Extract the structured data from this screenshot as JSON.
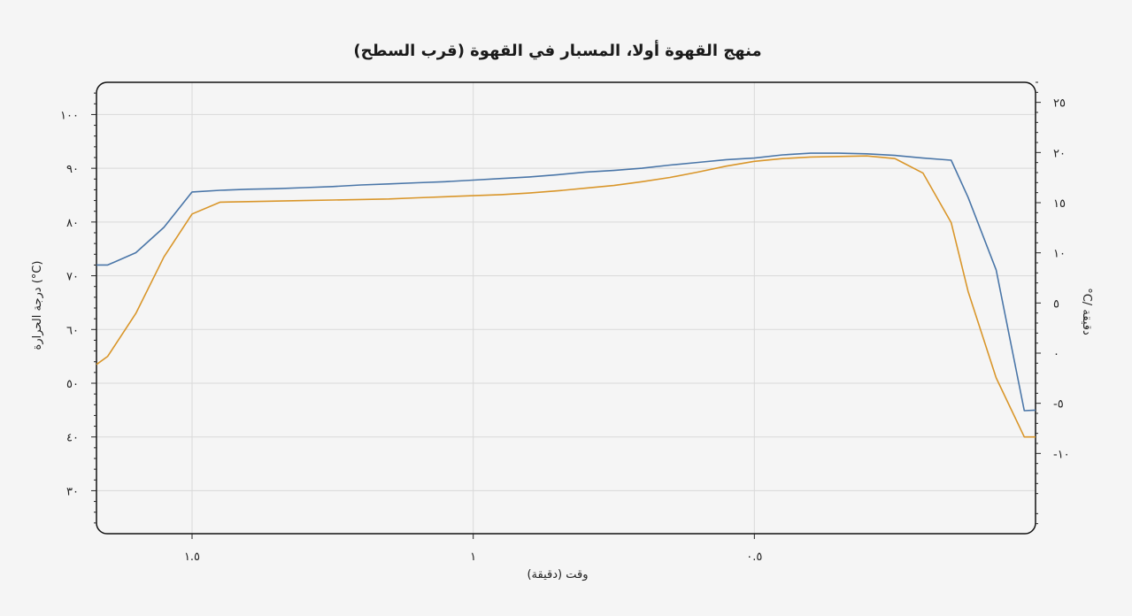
{
  "chart_data": {
    "type": "line",
    "title": "منهج القهوة أولا، المسبار في القهوة (قرب السطح)",
    "xlabel": "وقت (دقيقة)",
    "ylabel": "درجة الحرارة (°C)",
    "y2label": "°C/ دقيقة",
    "x_reversed": true,
    "xlim": [
      1.67,
      0
    ],
    "ylim": [
      22,
      106
    ],
    "y2lim": [
      -18,
      27
    ],
    "x_ticks": [
      1.5,
      1,
      0.5
    ],
    "x_tick_labels": [
      "١.٥",
      "١",
      "٠.٥"
    ],
    "y_ticks": [
      30,
      40,
      50,
      60,
      70,
      80,
      90,
      100
    ],
    "y_tick_labels": [
      "٣٠",
      "٤٠",
      "٥٠",
      "٦٠",
      "٧٠",
      "٨٠",
      "٩٠",
      "١٠٠"
    ],
    "y2_ticks": [
      -10,
      -5,
      0,
      5,
      10,
      15,
      20,
      25
    ],
    "y2_tick_labels": [
      "-١٠",
      "-٥",
      "٠",
      "٥",
      "١٠",
      "١٥",
      "٢٠",
      "٢٥"
    ],
    "grid": true,
    "series": [
      {
        "color": "#4a76a8",
        "x": [
          1.67,
          1.65,
          1.6,
          1.55,
          1.5,
          1.45,
          1.4,
          1.35,
          1.3,
          1.25,
          1.2,
          1.15,
          1.1,
          1.05,
          1.0,
          0.95,
          0.9,
          0.85,
          0.8,
          0.75,
          0.7,
          0.65,
          0.6,
          0.55,
          0.5,
          0.45,
          0.4,
          0.35,
          0.3,
          0.25,
          0.2,
          0.15,
          0.12,
          0.07,
          0.02,
          0.0
        ],
        "y": [
          72,
          72,
          74.3,
          79,
          85.6,
          85.9,
          86.1,
          86.2,
          86.4,
          86.6,
          86.9,
          87.1,
          87.3,
          87.5,
          87.8,
          88.1,
          88.4,
          88.8,
          89.3,
          89.6,
          90.0,
          90.6,
          91.1,
          91.6,
          91.9,
          92.5,
          92.8,
          92.8,
          92.7,
          92.4,
          91.9,
          91.5,
          84.6,
          71.1,
          44.9,
          45
        ]
      },
      {
        "color": "#d9962a",
        "x": [
          1.67,
          1.65,
          1.6,
          1.55,
          1.5,
          1.45,
          1.4,
          1.35,
          1.3,
          1.25,
          1.2,
          1.15,
          1.1,
          1.05,
          1.0,
          0.95,
          0.9,
          0.85,
          0.8,
          0.75,
          0.7,
          0.65,
          0.6,
          0.55,
          0.5,
          0.45,
          0.4,
          0.35,
          0.3,
          0.25,
          0.2,
          0.15,
          0.12,
          0.07,
          0.02,
          0.0
        ],
        "y": [
          53.5,
          55,
          63,
          73.5,
          81.5,
          83.7,
          83.8,
          83.9,
          84.0,
          84.1,
          84.2,
          84.3,
          84.5,
          84.7,
          84.9,
          85.1,
          85.4,
          85.8,
          86.3,
          86.8,
          87.5,
          88.3,
          89.3,
          90.4,
          91.3,
          91.8,
          92.1,
          92.2,
          92.3,
          91.8,
          89.1,
          79.9,
          67.1,
          51,
          40.0,
          40
        ]
      }
    ]
  }
}
